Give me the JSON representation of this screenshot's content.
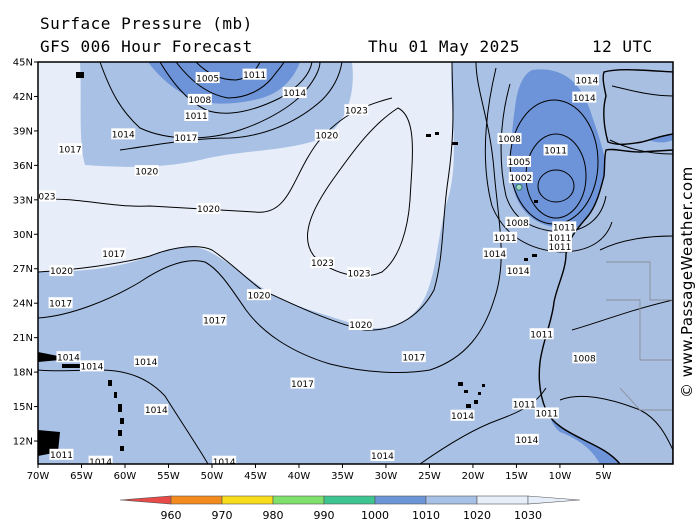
{
  "header": {
    "title": "Surface Pressure (mb)",
    "subtitle": "GFS 006 Hour Forecast",
    "date": "Thu 01 May 2025",
    "time": "12 UTC"
  },
  "credit": "© www.PassageWeather.com",
  "map": {
    "lon_range": [
      -70,
      3
    ],
    "lat_range": [
      10,
      45
    ],
    "lat_ticks": [
      "45N",
      "42N",
      "39N",
      "36N",
      "33N",
      "30N",
      "27N",
      "24N",
      "21N",
      "18N",
      "15N",
      "12N"
    ],
    "lon_ticks": [
      "70W",
      "65W",
      "60W",
      "55W",
      "50W",
      "45W",
      "40W",
      "35W",
      "30W",
      "25W",
      "20W",
      "15W",
      "10W",
      "5W"
    ],
    "colors": {
      "band_1030": "#e7eefa",
      "band_1020": "#a9c1e5",
      "band_1010": "#6d93d8",
      "land": "#a8bfe2",
      "coast": "#000000",
      "isobar": "#000000"
    },
    "low_center": {
      "lon": -14.7,
      "lat": 34.1
    },
    "isobar_labels": [
      {
        "text": "1005",
        "lon": -50.5,
        "lat": 43.6
      },
      {
        "text": "1008",
        "lon": -51.4,
        "lat": 41.7
      },
      {
        "text": "1011",
        "lon": -45.1,
        "lat": 43.9
      },
      {
        "text": "1011",
        "lon": -51.8,
        "lat": 40.3
      },
      {
        "text": "1014",
        "lon": -40.5,
        "lat": 42.3
      },
      {
        "text": "1014",
        "lon": -60.2,
        "lat": 38.7
      },
      {
        "text": "1017",
        "lon": -66.3,
        "lat": 37.4
      },
      {
        "text": "1017",
        "lon": -53.0,
        "lat": 38.4
      },
      {
        "text": "1020",
        "lon": -36.8,
        "lat": 38.6
      },
      {
        "text": "1020",
        "lon": -57.5,
        "lat": 35.5
      },
      {
        "text": "1023",
        "lon": -69.3,
        "lat": 33.3
      },
      {
        "text": "1020",
        "lon": -50.4,
        "lat": 32.2
      },
      {
        "text": "1017",
        "lon": -61.3,
        "lat": 28.3
      },
      {
        "text": "1020",
        "lon": -67.3,
        "lat": 26.8
      },
      {
        "text": "1017",
        "lon": -67.4,
        "lat": 24.0
      },
      {
        "text": "1020",
        "lon": -44.6,
        "lat": 24.7
      },
      {
        "text": "1017",
        "lon": -49.7,
        "lat": 22.5
      },
      {
        "text": "1023",
        "lon": -33.4,
        "lat": 40.8
      },
      {
        "text": "1023",
        "lon": -37.3,
        "lat": 27.5
      },
      {
        "text": "1023",
        "lon": -33.1,
        "lat": 26.6
      },
      {
        "text": "1020",
        "lon": -32.9,
        "lat": 22.1
      },
      {
        "text": "1017",
        "lon": -39.6,
        "lat": 17.0
      },
      {
        "text": "1017",
        "lon": -26.8,
        "lat": 19.3
      },
      {
        "text": "1014",
        "lon": -66.5,
        "lat": 19.3
      },
      {
        "text": "1014",
        "lon": -63.8,
        "lat": 18.5
      },
      {
        "text": "1014",
        "lon": -57.6,
        "lat": 18.9
      },
      {
        "text": "1014",
        "lon": -56.4,
        "lat": 14.7
      },
      {
        "text": "1011",
        "lon": -67.3,
        "lat": 10.8
      },
      {
        "text": "1014",
        "lon": -62.8,
        "lat": 10.2
      },
      {
        "text": "1014",
        "lon": -48.6,
        "lat": 10.2
      },
      {
        "text": "1014",
        "lon": -30.4,
        "lat": 10.7
      },
      {
        "text": "1014",
        "lon": -21.2,
        "lat": 14.2
      },
      {
        "text": "1008",
        "lon": -15.8,
        "lat": 38.3
      },
      {
        "text": "1005",
        "lon": -14.7,
        "lat": 36.3
      },
      {
        "text": "1002",
        "lon": -14.5,
        "lat": 34.9
      },
      {
        "text": "1008",
        "lon": -14.9,
        "lat": 31.0
      },
      {
        "text": "1011",
        "lon": -16.3,
        "lat": 29.7
      },
      {
        "text": "1014",
        "lon": -17.5,
        "lat": 28.3
      },
      {
        "text": "1014",
        "lon": -14.8,
        "lat": 26.8
      },
      {
        "text": "1011",
        "lon": -10.5,
        "lat": 37.3
      },
      {
        "text": "1014",
        "lon": -6.9,
        "lat": 43.4
      },
      {
        "text": "1014",
        "lon": -7.2,
        "lat": 41.9
      },
      {
        "text": "1011",
        "lon": -9.5,
        "lat": 30.6
      },
      {
        "text": "1011",
        "lon": -10.0,
        "lat": 29.7
      },
      {
        "text": "1011",
        "lon": -10.0,
        "lat": 28.9
      },
      {
        "text": "1011",
        "lon": -12.1,
        "lat": 21.3
      },
      {
        "text": "1008",
        "lon": -7.2,
        "lat": 19.2
      },
      {
        "text": "1011",
        "lon": -14.1,
        "lat": 15.2
      },
      {
        "text": "1011",
        "lon": -11.5,
        "lat": 14.4
      },
      {
        "text": "1014",
        "lon": -13.8,
        "lat": 12.1
      }
    ]
  },
  "colorbar": {
    "ticks": [
      "960",
      "970",
      "980",
      "990",
      "1000",
      "1010",
      "1020",
      "1030"
    ],
    "colors": [
      "#e84a4a",
      "#f28a1e",
      "#f7dc1b",
      "#7fe06c",
      "#3ec48e",
      "#6b95d6",
      "#a7c0e6",
      "#e5eef9"
    ]
  }
}
